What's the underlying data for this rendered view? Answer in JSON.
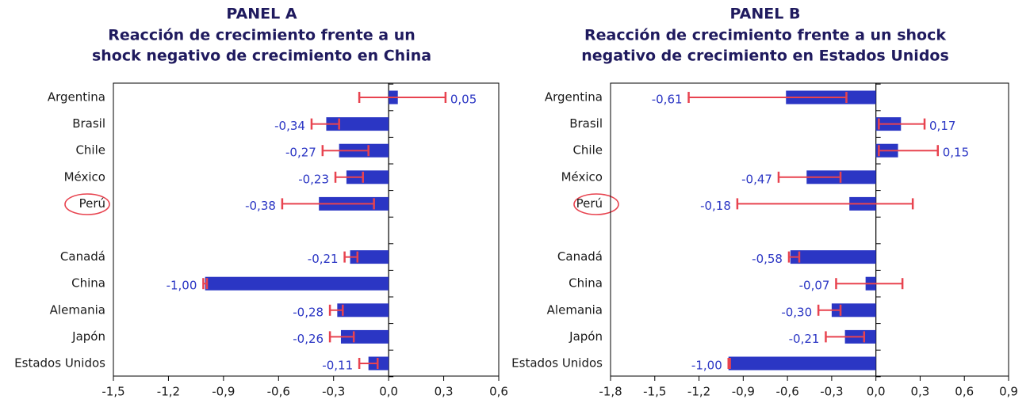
{
  "chart_data": [
    {
      "type": "bar",
      "orientation": "horizontal",
      "title": "PANEL A",
      "subtitle": [
        "Reacción de crecimiento frente a un",
        "shock negativo de crecimiento en China"
      ],
      "categories": [
        "Argentina",
        "Brasil",
        "Chile",
        "México",
        "Perú",
        null,
        "Canadá",
        "China",
        "Alemania",
        "Japón",
        "Estados Unidos"
      ],
      "values": [
        0.05,
        -0.34,
        -0.27,
        -0.23,
        -0.38,
        null,
        -0.21,
        -1.0,
        -0.28,
        -0.26,
        -0.11
      ],
      "value_labels": [
        "0,05",
        "-0,34",
        "-0,27",
        "-0,23",
        "-0,38",
        null,
        "-0,21",
        "-1,00",
        "-0,28",
        "-0,26",
        "-0,11"
      ],
      "error_low": [
        -0.16,
        -0.42,
        -0.36,
        -0.29,
        -0.58,
        null,
        -0.24,
        -1.01,
        -0.32,
        -0.32,
        -0.16
      ],
      "error_high": [
        0.31,
        -0.27,
        -0.11,
        -0.14,
        -0.08,
        null,
        -0.17,
        -0.99,
        -0.25,
        -0.19,
        -0.06
      ],
      "color": "#2b36c4",
      "error_color": "#e8434f",
      "xlim": [
        -1.5,
        0.6
      ],
      "xticks": [
        {
          "value": -1.5,
          "label": "-1,5"
        },
        {
          "value": -1.2,
          "label": "-1,2"
        },
        {
          "value": -0.9,
          "label": "-0,9"
        },
        {
          "value": -0.6,
          "label": "-0,6"
        },
        {
          "value": -0.3,
          "label": "-0,3"
        },
        {
          "value": 0,
          "label": "0,0"
        },
        {
          "value": 0.3,
          "label": "0,3"
        },
        {
          "value": 0.6,
          "label": "0,6"
        }
      ]
    },
    {
      "type": "bar",
      "orientation": "horizontal",
      "title": "PANEL B",
      "subtitle": [
        "Reacción de crecimiento frente a un shock",
        "negativo de crecimiento en Estados Unidos"
      ],
      "categories": [
        "Argentina",
        "Brasil",
        "Chile",
        "México",
        "Perú",
        null,
        "Canadá",
        "China",
        "Alemania",
        "Japón",
        "Estados Unidos"
      ],
      "values": [
        -0.61,
        0.17,
        0.15,
        -0.47,
        -0.18,
        null,
        -0.58,
        -0.07,
        -0.3,
        -0.21,
        -1.0
      ],
      "value_labels": [
        "-0,61",
        "0,17",
        "0,15",
        "-0,47",
        "-0,18",
        null,
        "-0,58",
        "-0,07",
        "-0,30",
        "-0,21",
        "-1,00"
      ],
      "error_low": [
        -1.27,
        0.02,
        0.02,
        -0.66,
        -0.94,
        null,
        -0.59,
        -0.27,
        -0.39,
        -0.34,
        -1.0
      ],
      "error_high": [
        -0.2,
        0.33,
        0.42,
        -0.24,
        0.25,
        null,
        -0.52,
        0.18,
        -0.24,
        -0.08,
        -0.99
      ],
      "color": "#2b36c4",
      "error_color": "#e8434f",
      "xlim": [
        -1.8,
        0.9
      ],
      "xticks": [
        {
          "value": -1.8,
          "label": "-1,8"
        },
        {
          "value": -1.5,
          "label": "-1,5"
        },
        {
          "value": -1.2,
          "label": "-1,2"
        },
        {
          "value": -0.9,
          "label": "-0,9"
        },
        {
          "value": -0.6,
          "label": "-0,6"
        },
        {
          "value": -0.3,
          "label": "-0,3"
        },
        {
          "value": 0,
          "label": "0,0"
        },
        {
          "value": 0.3,
          "label": "0,3"
        },
        {
          "value": 0.6,
          "label": "0,6"
        },
        {
          "value": 0.9,
          "label": "0,9"
        }
      ]
    }
  ]
}
